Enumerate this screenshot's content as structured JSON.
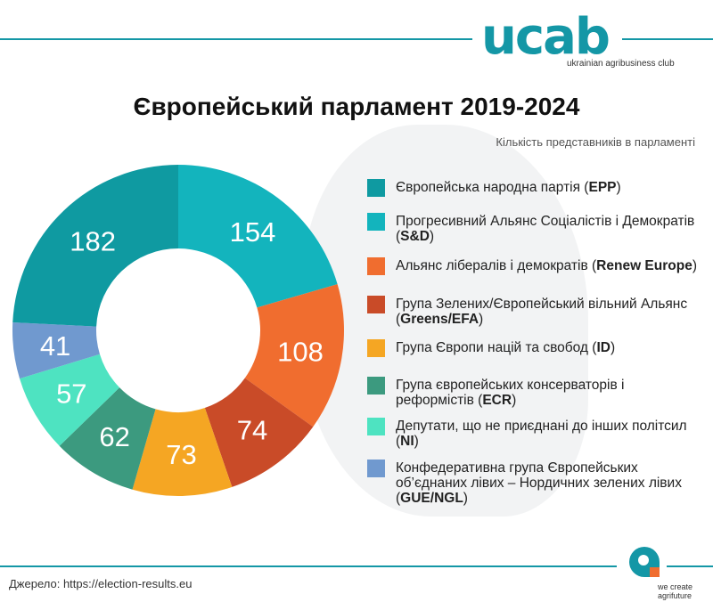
{
  "logo": {
    "text": "ucab",
    "tagline": "ukrainian agribusiness club"
  },
  "title": "Європейський парламент 2019-2024",
  "subtitle": "Кількість представників в парламенті",
  "chart_data": {
    "type": "pie",
    "donut": true,
    "title": "Європейський парламент 2019-2024",
    "slices": [
      {
        "key": "S&D",
        "value": 154,
        "color": "#13b4bd"
      },
      {
        "key": "Renew Europe",
        "value": 108,
        "color": "#f06d2f"
      },
      {
        "key": "Greens/EFA",
        "value": 74,
        "color": "#c94b28"
      },
      {
        "key": "ID",
        "value": 73,
        "color": "#f5a623"
      },
      {
        "key": "ECR",
        "value": 62,
        "color": "#3c9a7f"
      },
      {
        "key": "NI",
        "value": 57,
        "color": "#4ee3c1"
      },
      {
        "key": "GUE/NGL",
        "value": 41,
        "color": "#7099cf"
      },
      {
        "key": "EPP",
        "value": 182,
        "color": "#0f9aa1"
      }
    ]
  },
  "legend": [
    {
      "text": "Європейська народна партія (",
      "bold": "EPP",
      "end": ")",
      "color": "#0f9aa1"
    },
    {
      "text": "Прогресивний Альянс Соціалістів і Демократів (",
      "bold": "S&D",
      "end": ")",
      "color": "#13b4bd"
    },
    {
      "text": "Альянс лібералів і демократів (",
      "bold": "Renew Europe",
      "end": ")",
      "color": "#f06d2f"
    },
    {
      "text": "Група Зелених/Європейський вільний Альянс (",
      "bold": "Greens/EFA",
      "end": ")",
      "color": "#c94b28"
    },
    {
      "text": "Група Європи націй та свобод (",
      "bold": "ID",
      "end": ")",
      "color": "#f5a623"
    },
    {
      "text": "Група європейських консерваторів і реформістів (",
      "bold": "ECR",
      "end": ")",
      "color": "#3c9a7f"
    },
    {
      "text": "Депутати, що не приєднані до інших політсил (",
      "bold": "NI",
      "end": ")",
      "color": "#4ee3c1"
    },
    {
      "text": "Конфедеративна група Європейських об’єднаних лівих – Нордичних зелених лівих (",
      "bold": "GUE/NGL",
      "end": ")",
      "color": "#7099cf"
    }
  ],
  "source": "Джерело: https://election-results.eu",
  "slogan": {
    "line1": "we create",
    "line2": "agrifuture"
  }
}
